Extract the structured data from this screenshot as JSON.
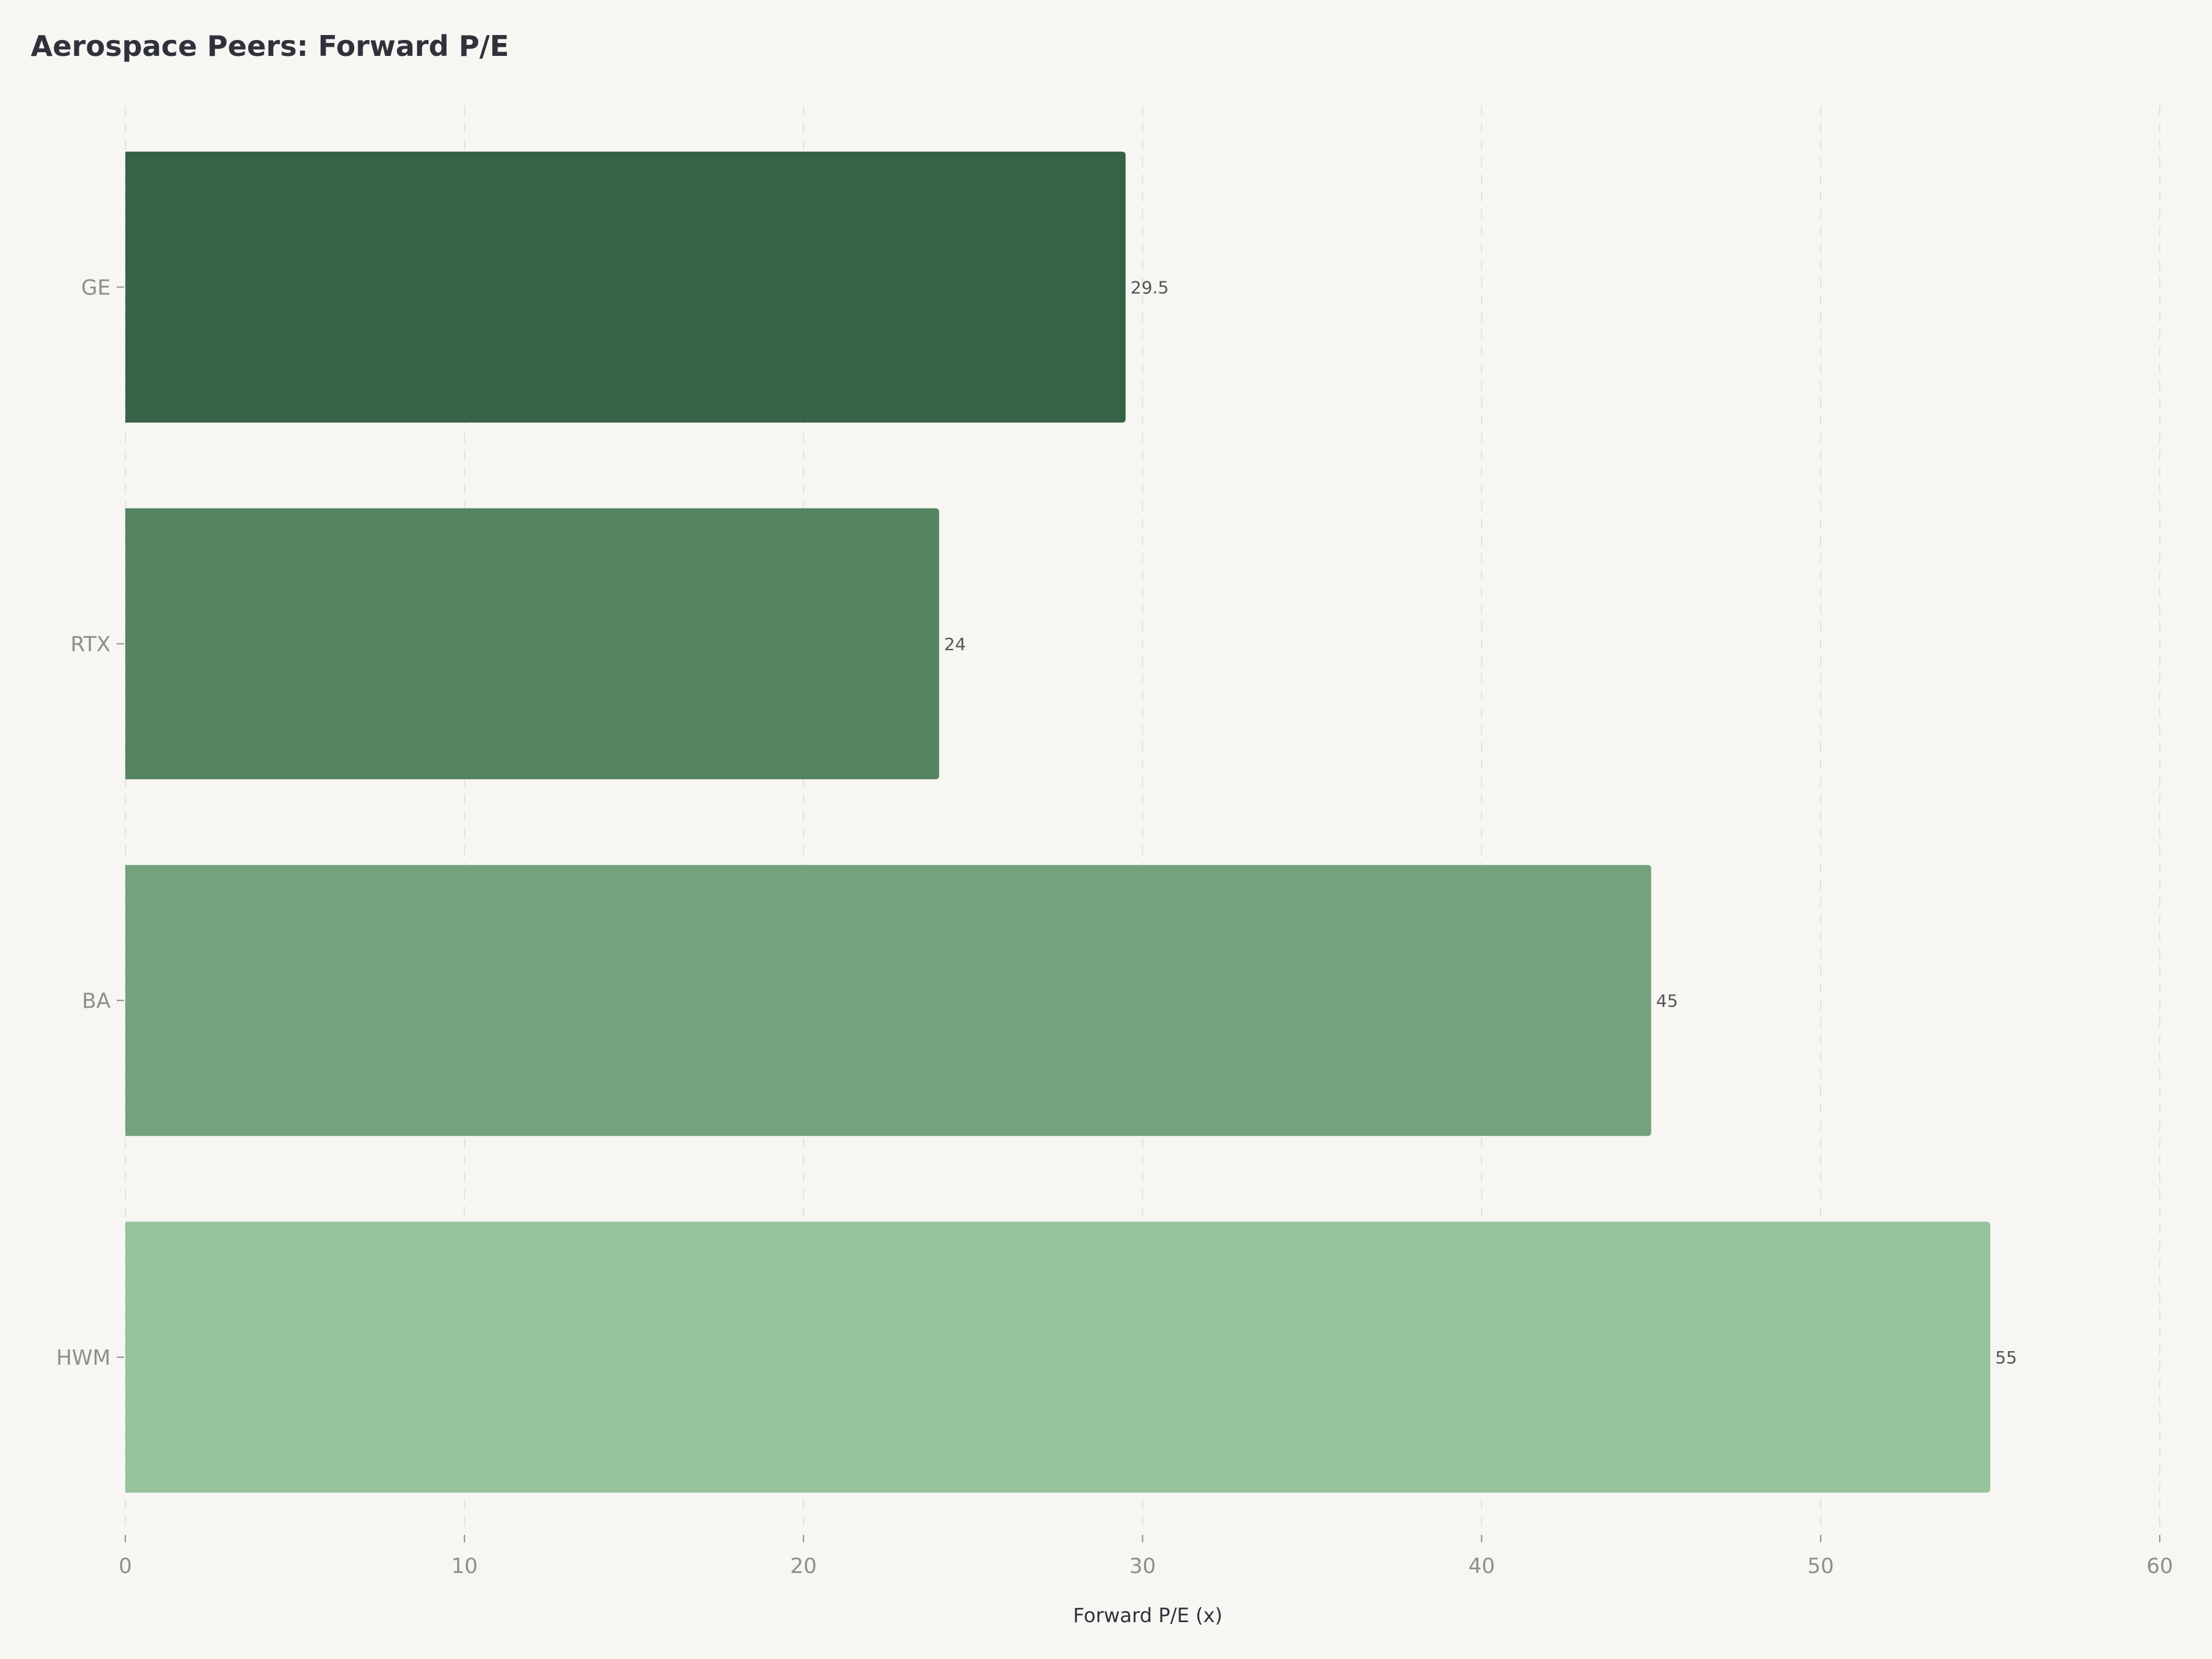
{
  "chart_data": {
    "type": "bar",
    "orientation": "horizontal",
    "title": "Aerospace Peers: Forward P/E",
    "xlabel": "Forward P/E (x)",
    "ylabel": "",
    "categories": [
      "GE",
      "RTX",
      "BA",
      "HWM"
    ],
    "values": [
      29.5,
      24,
      45,
      55
    ],
    "value_labels": [
      "29.5",
      "24",
      "45",
      "55"
    ],
    "colors": [
      "#366245",
      "#538360",
      "#73a27d",
      "#95c39c"
    ],
    "xlim": [
      0,
      60
    ],
    "xticks": [
      0,
      10,
      20,
      30,
      40,
      50,
      60
    ],
    "xtick_labels": [
      "0",
      "10",
      "20",
      "30",
      "40",
      "50",
      "60"
    ],
    "grid": "vertical dashed",
    "background": "#f7f6f2"
  }
}
